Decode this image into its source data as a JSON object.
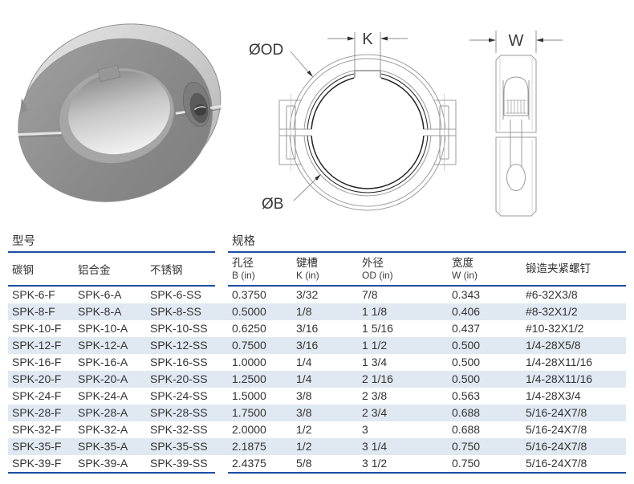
{
  "colors": {
    "accent_blue": "#1d4fa3",
    "row_stripe": "#e0e9f1",
    "table_text": "#333333",
    "drawing_gray": "#9b9b9b"
  },
  "images": {
    "photo": "two-piece-clamp-shaft-collar-render",
    "front_view": {
      "od_label": "ØOD",
      "k_label": "K",
      "b_label": "ØB"
    },
    "side_view": {
      "w_label": "W"
    }
  },
  "table": {
    "group_headers": {
      "model": "型号",
      "spec": "规格"
    },
    "columns": [
      {
        "label": "碳钢",
        "sub": ""
      },
      {
        "label": "铝合金",
        "sub": ""
      },
      {
        "label": "不锈钢",
        "sub": ""
      },
      {
        "label": "孔径",
        "sub": "B (in)"
      },
      {
        "label": "键槽",
        "sub": "K (in)"
      },
      {
        "label": "外径",
        "sub": "OD (in)"
      },
      {
        "label": "宽度",
        "sub": "W (in)"
      },
      {
        "label": "锻造夹紧螺钉",
        "sub": ""
      }
    ],
    "rows": [
      [
        "SPK-6-F",
        "SPK-6-A",
        "SPK-6-SS",
        "0.3750",
        "3/32",
        "7/8",
        "0.343",
        "#6-32X3/8"
      ],
      [
        "SPK-8-F",
        "SPK-8-A",
        "SPK-8-SS",
        "0.5000",
        "1/8",
        "1 1/8",
        "0.406",
        "#8-32X1/2"
      ],
      [
        "SPK-10-F",
        "SPK-10-A",
        "SPK-10-SS",
        "0.6250",
        "3/16",
        "1 5/16",
        "0.437",
        "#10-32X1/2"
      ],
      [
        "SPK-12-F",
        "SPK-12-A",
        "SPK-12-SS",
        "0.7500",
        "3/16",
        "1 1/2",
        "0.500",
        "1/4-28X5/8"
      ],
      [
        "SPK-16-F",
        "SPK-16-A",
        "SPK-16-SS",
        "1.0000",
        "1/4",
        "1 3/4",
        "0.500",
        "1/4-28X11/16"
      ],
      [
        "SPK-20-F",
        "SPK-20-A",
        "SPK-20-SS",
        "1.2500",
        "1/4",
        "2 1/16",
        "0.500",
        "1/4-28X11/16"
      ],
      [
        "SPK-24-F",
        "SPK-24-A",
        "SPK-24-SS",
        "1.5000",
        "3/8",
        "2 3/8",
        "0.563",
        "1/4-28X3/4"
      ],
      [
        "SPK-28-F",
        "SPK-28-A",
        "SPK-28-SS",
        "1.7500",
        "3/8",
        "2 3/4",
        "0.688",
        "5/16-24X7/8"
      ],
      [
        "SPK-32-F",
        "SPK-32-A",
        "SPK-32-SS",
        "2.0000",
        "1/2",
        "3",
        "0.688",
        "5/16-24X7/8"
      ],
      [
        "SPK-35-F",
        "SPK-35-A",
        "SPK-35-SS",
        "2.1875",
        "1/2",
        "3 1/4",
        "0.750",
        "5/16-24X7/8"
      ],
      [
        "SPK-39-F",
        "SPK-39-A",
        "SPK-39-SS",
        "2.4375",
        "5/8",
        "3 1/2",
        "0.750",
        "5/16-24X7/8"
      ]
    ]
  }
}
